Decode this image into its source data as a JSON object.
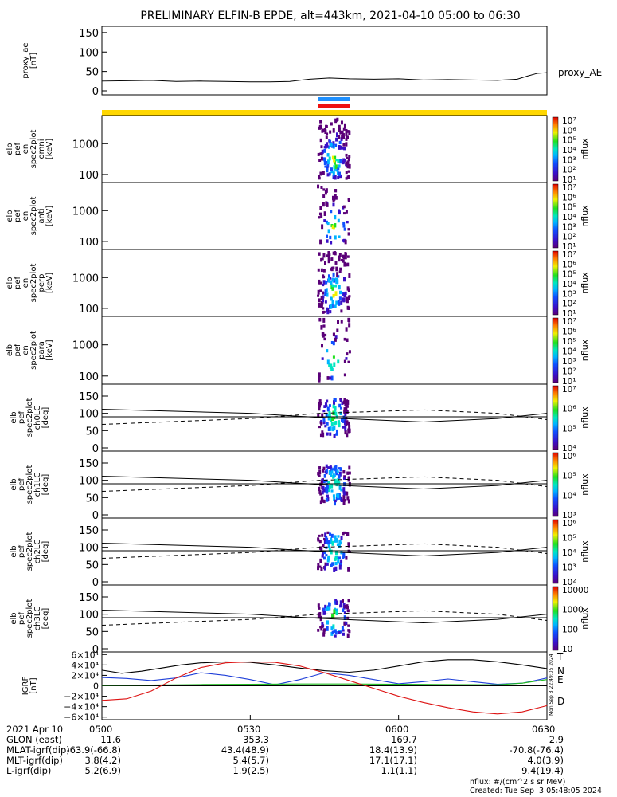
{
  "title": "PRELIMINARY ELFIN-B EPDE, alt=443km, 2021-04-10 05:00 to 06:30",
  "colors": {
    "yellow_bar": "#ffd700",
    "blue_bar": "#1e90ff",
    "red_bar": "#ee1111",
    "N": "#1f3fd8",
    "E": "#22bb22",
    "D": "#dd1111",
    "T": "#000000"
  },
  "chart_data": [
    {
      "type": "line",
      "panel": "proxy_ae",
      "ylabel": [
        "proxy_ae",
        "[nT]"
      ],
      "ylim": [
        0,
        160
      ],
      "yticks": [
        "150",
        "100",
        "50",
        "0"
      ],
      "yticks_val": [
        150,
        100,
        50,
        0
      ],
      "series": [
        {
          "name": "proxy_AE",
          "x": [
            0,
            5,
            10,
            15,
            20,
            25,
            30,
            34,
            38,
            42,
            46,
            50,
            55,
            60,
            65,
            70,
            75,
            80,
            84,
            86,
            88,
            90
          ],
          "y": [
            25,
            26,
            27,
            24,
            25,
            24,
            23,
            23,
            24,
            30,
            33,
            31,
            30,
            31,
            28,
            29,
            28,
            27,
            30,
            38,
            45,
            47
          ]
        }
      ]
    },
    {
      "type": "heatmap",
      "panel": "omni",
      "ylabel": [
        "elb",
        "pef",
        "en",
        "spec2plot",
        "omni",
        "[keV]"
      ],
      "yticks": [
        "1000",
        "100"
      ],
      "yscale": "log",
      "colorbar": {
        "label": "nflux",
        "ticks": [
          "10⁷",
          "10⁶",
          "10⁵",
          "10⁴",
          "10³",
          "10²",
          "10¹"
        ]
      }
    },
    {
      "type": "heatmap",
      "panel": "anti",
      "ylabel": [
        "elb",
        "pef",
        "en",
        "spec2plot",
        "anti",
        "[keV]"
      ],
      "yticks": [
        "1000",
        "100"
      ],
      "yscale": "log",
      "colorbar": {
        "label": "nflux",
        "ticks": [
          "10⁷",
          "10⁶",
          "10⁵",
          "10⁴",
          "10³",
          "10²",
          "10¹"
        ]
      }
    },
    {
      "type": "heatmap",
      "panel": "perp",
      "ylabel": [
        "elb",
        "pef",
        "en",
        "spec2plot",
        "perp",
        "[keV]"
      ],
      "yticks": [
        "1000",
        "100"
      ],
      "yscale": "log",
      "colorbar": {
        "label": "nflux",
        "ticks": [
          "10⁷",
          "10⁶",
          "10⁵",
          "10⁴",
          "10³",
          "10²",
          "10¹"
        ]
      }
    },
    {
      "type": "heatmap",
      "panel": "para",
      "ylabel": [
        "elb",
        "pef",
        "en",
        "spec2plot",
        "para",
        "[keV]"
      ],
      "yticks": [
        "1000",
        "100"
      ],
      "yscale": "log",
      "colorbar": {
        "label": "nflux",
        "ticks": [
          "10⁷",
          "10⁶",
          "10⁵",
          "10⁴",
          "10³",
          "10²",
          "10¹"
        ]
      }
    },
    {
      "type": "heatmap",
      "panel": "ch0LC",
      "ylabel": [
        "elb",
        "pef",
        "spec2plot",
        "ch0LC",
        "[deg]"
      ],
      "yticks": [
        "150",
        "100",
        "50",
        "0"
      ],
      "ylim": [
        0,
        180
      ],
      "colorbar": {
        "label": "nflux",
        "ticks": [
          "10⁷",
          "10⁶",
          "10⁵",
          "10⁴"
        ]
      }
    },
    {
      "type": "heatmap",
      "panel": "ch1LC",
      "ylabel": [
        "elb",
        "pef",
        "spec2plot",
        "ch1LC",
        "[deg]"
      ],
      "yticks": [
        "150",
        "100",
        "50",
        "0"
      ],
      "ylim": [
        0,
        180
      ],
      "colorbar": {
        "label": "nflux",
        "ticks": [
          "10⁶",
          "10⁵",
          "10⁴",
          "10³"
        ]
      }
    },
    {
      "type": "heatmap",
      "panel": "ch2LC",
      "ylabel": [
        "elb",
        "pef",
        "spec2plot",
        "ch2LC",
        "[deg]"
      ],
      "yticks": [
        "150",
        "100",
        "50",
        "0"
      ],
      "ylim": [
        0,
        180
      ],
      "colorbar": {
        "label": "nflux",
        "ticks": [
          "10⁶",
          "10⁵",
          "10⁴",
          "10³",
          "10²"
        ]
      }
    },
    {
      "type": "heatmap",
      "panel": "ch3LC",
      "ylabel": [
        "elb",
        "pef",
        "spec2plot",
        "ch3LC",
        "[deg]"
      ],
      "yticks": [
        "150",
        "100",
        "50",
        "0"
      ],
      "ylim": [
        0,
        180
      ],
      "colorbar": {
        "label": "nflux",
        "ticks": [
          "10000",
          "1000",
          "100",
          "10"
        ]
      }
    },
    {
      "type": "line",
      "panel": "IGRF",
      "ylabel": [
        "IGRF",
        "[nT]"
      ],
      "ylim": [
        -65000,
        65000
      ],
      "yticks": [
        "6×10⁴",
        "4×10⁴",
        "2×10⁴",
        "0",
        "−2×10⁴",
        "−4×10⁴",
        "−6×10⁴"
      ],
      "yticks_val": [
        60000,
        40000,
        20000,
        0,
        -20000,
        -40000,
        -60000
      ],
      "legend": [
        "T",
        "N",
        "E",
        "D"
      ],
      "series": [
        {
          "name": "T",
          "x": [
            0,
            4,
            8,
            12,
            16,
            20,
            25,
            30,
            35,
            40,
            45,
            50,
            55,
            60,
            65,
            70,
            75,
            80,
            85,
            90
          ],
          "y": [
            30000,
            24000,
            28000,
            34000,
            40000,
            44000,
            46000,
            45000,
            40000,
            34000,
            29000,
            26000,
            30000,
            38000,
            46000,
            50000,
            50000,
            46000,
            40000,
            33000
          ]
        },
        {
          "name": "N",
          "x": [
            0,
            5,
            10,
            15,
            20,
            25,
            30,
            35,
            40,
            45,
            50,
            55,
            60,
            65,
            70,
            75,
            80,
            85,
            90
          ],
          "y": [
            16000,
            14000,
            10000,
            15000,
            25000,
            20000,
            12000,
            2000,
            12000,
            25000,
            20000,
            12000,
            4000,
            8000,
            13000,
            8000,
            3000,
            5000,
            15000
          ]
        },
        {
          "name": "E",
          "x": [
            0,
            10,
            20,
            30,
            40,
            50,
            60,
            70,
            80,
            85,
            90
          ],
          "y": [
            1000,
            1500,
            2500,
            3000,
            3500,
            3500,
            3000,
            2500,
            2000,
            5000,
            12000
          ]
        },
        {
          "name": "D",
          "x": [
            0,
            5,
            10,
            15,
            20,
            25,
            30,
            35,
            40,
            45,
            50,
            55,
            60,
            65,
            70,
            75,
            80,
            85,
            90
          ],
          "y": [
            -28000,
            -25000,
            -10000,
            15000,
            35000,
            44000,
            46000,
            45000,
            38000,
            25000,
            10000,
            -5000,
            -20000,
            -32000,
            -42000,
            -50000,
            -54000,
            -50000,
            -38000
          ]
        }
      ]
    }
  ],
  "right_labels": {
    "proxy": "proxy_AE",
    "T": "T",
    "N": "N",
    "E": "E",
    "D": "D"
  },
  "side_stamp": "Mon Sep  3 22:49:05 2024",
  "footer": {
    "date_label": "2021 Apr 10",
    "times": [
      "0500",
      "0530",
      "0600",
      "0630"
    ],
    "rows": [
      {
        "label": "GLON (east)",
        "values": [
          "11.6",
          "353.3",
          "169.7",
          "2.9"
        ]
      },
      {
        "label": "MLAT-igrf(dip)",
        "values": [
          "-63.9(-66.8)",
          "43.4(48.9)",
          "18.4(13.9)",
          "-70.8(-76.4)"
        ]
      },
      {
        "label": "MLT-igrf(dip)",
        "values": [
          "3.8(4.2)",
          "5.4(5.7)",
          "17.1(17.1)",
          "4.0(3.9)"
        ]
      },
      {
        "label": "L-igrf(dip)",
        "values": [
          "5.2(6.9)",
          "1.9(2.5)",
          "1.1(1.1)",
          "9.4(19.4)"
        ]
      }
    ],
    "units": "nflux: #/(cm^2 s sr MeV)",
    "created": "Created: Tue Sep  3 05:48:05 2024"
  }
}
